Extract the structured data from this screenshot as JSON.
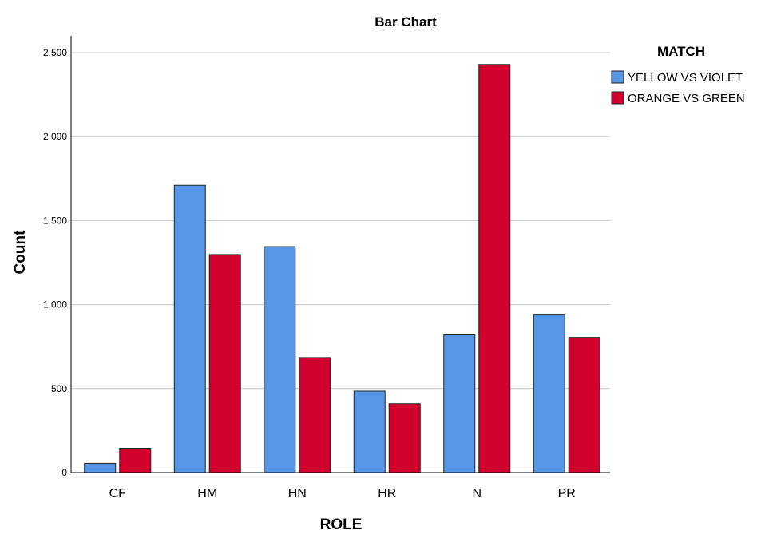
{
  "chart_data": {
    "type": "bar",
    "title": "Bar Chart",
    "xlabel": "ROLE",
    "ylabel": "Count",
    "categories": [
      "CF",
      "HM",
      "HN",
      "HR",
      "N",
      "PR"
    ],
    "ylim": [
      0,
      2600
    ],
    "yticks": [
      0,
      500,
      1000,
      1500,
      2000,
      2500
    ],
    "ytick_labels": [
      "0",
      "500",
      "1.000",
      "1.500",
      "2.000",
      "2.500"
    ],
    "grid": true,
    "legend": {
      "title": "MATCH",
      "position": "right"
    },
    "series": [
      {
        "name": "YELLOW VS VIOLET",
        "color": "#5596e6",
        "values": [
          55,
          1710,
          1345,
          485,
          820,
          938
        ]
      },
      {
        "name": "ORANGE VS GREEN",
        "color": "#d1002d",
        "values": [
          145,
          1298,
          685,
          410,
          2430,
          805
        ]
      }
    ]
  }
}
